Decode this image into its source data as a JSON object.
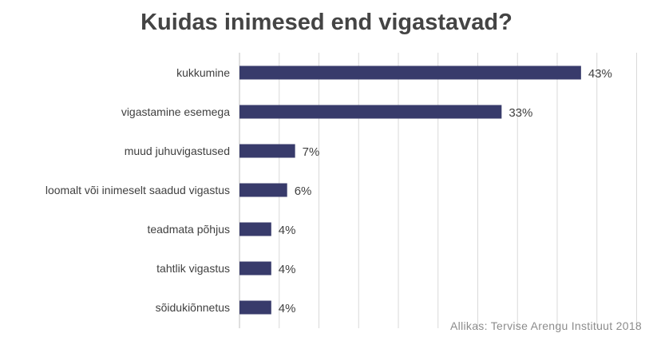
{
  "chart_data": {
    "type": "bar",
    "orientation": "horizontal",
    "title": "Kuidas inimesed end vigastavad?",
    "categories": [
      "kukkumine",
      "vigastamine esemega",
      "muud juhuvigastused",
      "loomalt või inimeselt saadud vigastus",
      "teadmata põhjus",
      "tahtlik vigastus",
      "sõidukiõnnetus"
    ],
    "values": [
      43,
      33,
      7,
      6,
      4,
      4,
      4
    ],
    "value_labels": [
      "43%",
      "33%",
      "7%",
      "6%",
      "4%",
      "4%",
      "4%"
    ],
    "xlim": [
      0,
      50
    ],
    "grid": true,
    "bar_color": "#383b6b",
    "xlabel": "",
    "ylabel": "",
    "source": "Allikas: Tervise Arengu Instituut 2018"
  }
}
